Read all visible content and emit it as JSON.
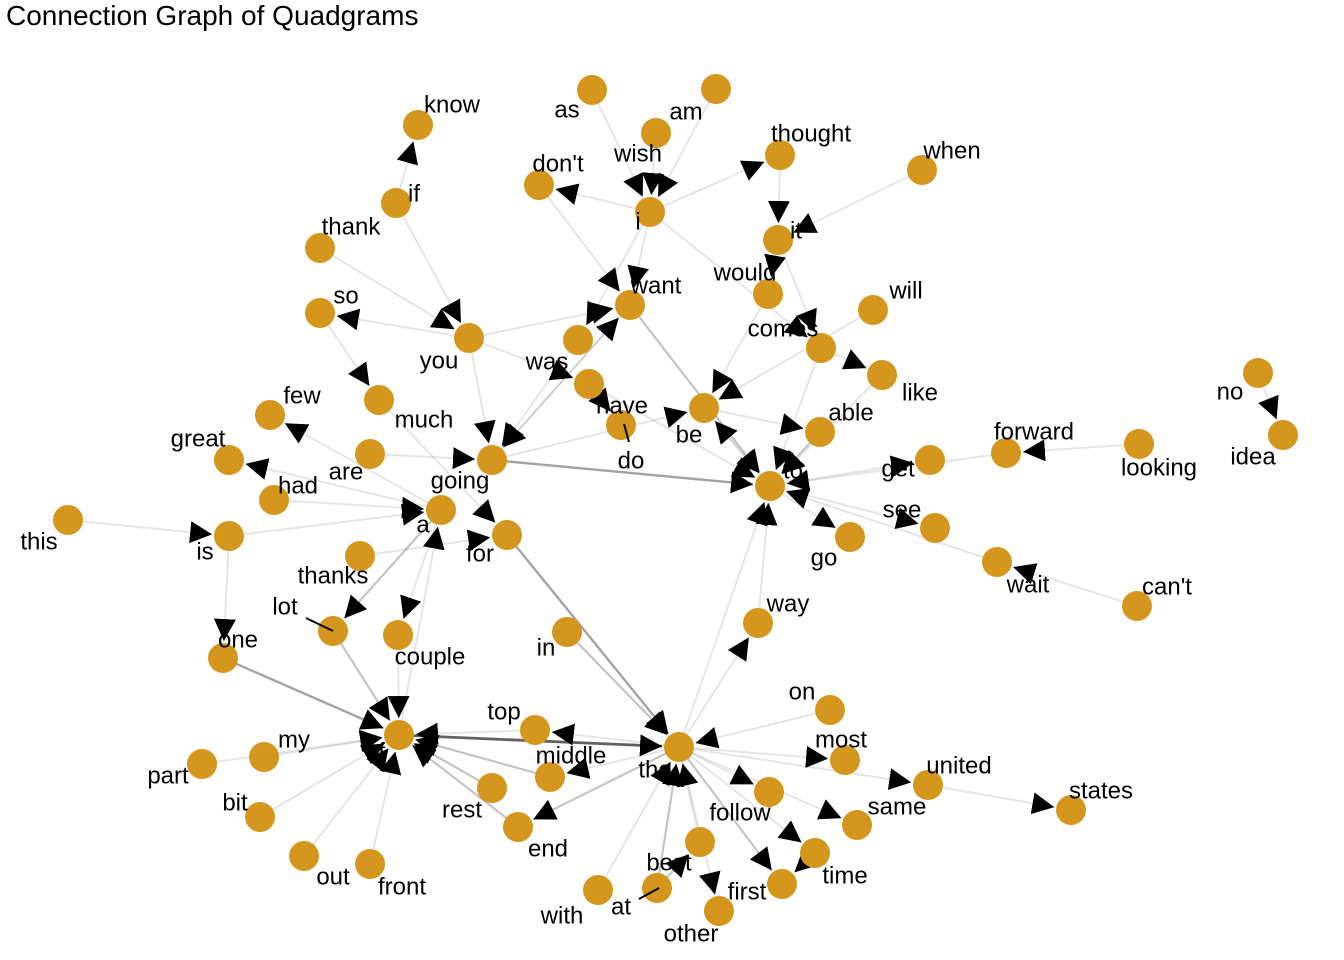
{
  "title": "Connection Graph of Quadgrams",
  "colors": {
    "node": "#D4961C",
    "edge": "#000000",
    "background": "#ffffff",
    "label": "#000000"
  },
  "nodes": [
    {
      "id": "know",
      "label": "know"
    },
    {
      "id": "as",
      "label": "as"
    },
    {
      "id": "am",
      "label": "am"
    },
    {
      "id": "wish",
      "label": "wish"
    },
    {
      "id": "thought",
      "label": "thought"
    },
    {
      "id": "don't",
      "label": "don't"
    },
    {
      "id": "when",
      "label": "when"
    },
    {
      "id": "if",
      "label": "if"
    },
    {
      "id": "i",
      "label": "i"
    },
    {
      "id": "thank",
      "label": "thank"
    },
    {
      "id": "it",
      "label": "it"
    },
    {
      "id": "would",
      "label": "would"
    },
    {
      "id": "want",
      "label": "want"
    },
    {
      "id": "will",
      "label": "will"
    },
    {
      "id": "so",
      "label": "so"
    },
    {
      "id": "you",
      "label": "you"
    },
    {
      "id": "was",
      "label": "was"
    },
    {
      "id": "comes",
      "label": "comes"
    },
    {
      "id": "like",
      "label": "like"
    },
    {
      "id": "have",
      "label": "have"
    },
    {
      "id": "much",
      "label": "much"
    },
    {
      "id": "few",
      "label": "few"
    },
    {
      "id": "be",
      "label": "be"
    },
    {
      "id": "able",
      "label": "able"
    },
    {
      "id": "no",
      "label": "no"
    },
    {
      "id": "idea",
      "label": "idea"
    },
    {
      "id": "forward",
      "label": "forward"
    },
    {
      "id": "looking",
      "label": "looking"
    },
    {
      "id": "great",
      "label": "great"
    },
    {
      "id": "are",
      "label": "are"
    },
    {
      "id": "do",
      "label": "do"
    },
    {
      "id": "going",
      "label": "going"
    },
    {
      "id": "get",
      "label": "get"
    },
    {
      "id": "to",
      "label": "to"
    },
    {
      "id": "had",
      "label": "had"
    },
    {
      "id": "a",
      "label": "a"
    },
    {
      "id": "see",
      "label": "see"
    },
    {
      "id": "this",
      "label": "this"
    },
    {
      "id": "is",
      "label": "is"
    },
    {
      "id": "for",
      "label": "for"
    },
    {
      "id": "go",
      "label": "go"
    },
    {
      "id": "thanks",
      "label": "thanks"
    },
    {
      "id": "wait",
      "label": "wait"
    },
    {
      "id": "can't",
      "label": "can't"
    },
    {
      "id": "lot",
      "label": "lot"
    },
    {
      "id": "one",
      "label": "one"
    },
    {
      "id": "couple",
      "label": "couple"
    },
    {
      "id": "in",
      "label": "in"
    },
    {
      "id": "way",
      "label": "way"
    },
    {
      "id": "on",
      "label": "on"
    },
    {
      "id": "top",
      "label": "top"
    },
    {
      "id": "my",
      "label": "my"
    },
    {
      "id": "most",
      "label": "most"
    },
    {
      "id": "of",
      "label": "of"
    },
    {
      "id": "middle",
      "label": "middle"
    },
    {
      "id": "the",
      "label": "the"
    },
    {
      "id": "united",
      "label": "united"
    },
    {
      "id": "states",
      "label": "states"
    },
    {
      "id": "part",
      "label": "part"
    },
    {
      "id": "rest",
      "label": "rest"
    },
    {
      "id": "follow",
      "label": "follow"
    },
    {
      "id": "same",
      "label": "same"
    },
    {
      "id": "bit",
      "label": "bit"
    },
    {
      "id": "end",
      "label": "end"
    },
    {
      "id": "best",
      "label": "best"
    },
    {
      "id": "time",
      "label": "time"
    },
    {
      "id": "out",
      "label": "out"
    },
    {
      "id": "front",
      "label": "front"
    },
    {
      "id": "first",
      "label": "first"
    },
    {
      "id": "with",
      "label": "with"
    },
    {
      "id": "at",
      "label": "at"
    },
    {
      "id": "other",
      "label": "other"
    }
  ],
  "edges": [
    {
      "from": "if",
      "to": "know",
      "weight": 1
    },
    {
      "from": "thank",
      "to": "you",
      "weight": 1
    },
    {
      "from": "if",
      "to": "you",
      "weight": 1
    },
    {
      "from": "you",
      "to": "so",
      "weight": 1
    },
    {
      "from": "so",
      "to": "much",
      "weight": 1
    },
    {
      "from": "you",
      "to": "want",
      "weight": 1
    },
    {
      "from": "you",
      "to": "going",
      "weight": 1
    },
    {
      "from": "you",
      "to": "have",
      "weight": 1
    },
    {
      "from": "as",
      "to": "i",
      "weight": 1
    },
    {
      "from": "am",
      "to": "i",
      "weight": 1
    },
    {
      "from": "wish",
      "to": "i",
      "weight": 1
    },
    {
      "from": "i",
      "to": "don't",
      "weight": 1
    },
    {
      "from": "i",
      "to": "thought",
      "weight": 1
    },
    {
      "from": "i",
      "to": "want",
      "weight": 1
    },
    {
      "from": "i",
      "to": "was",
      "weight": 1
    },
    {
      "from": "i",
      "to": "comes",
      "weight": 1
    },
    {
      "from": "don't",
      "to": "want",
      "weight": 1
    },
    {
      "from": "thought",
      "to": "it",
      "weight": 1
    },
    {
      "from": "when",
      "to": "it",
      "weight": 1
    },
    {
      "from": "it",
      "to": "would",
      "weight": 1
    },
    {
      "from": "it",
      "to": "comes",
      "weight": 1
    },
    {
      "from": "would",
      "to": "be",
      "weight": 1
    },
    {
      "from": "will",
      "to": "be",
      "weight": 1
    },
    {
      "from": "comes",
      "to": "to",
      "weight": 1
    },
    {
      "from": "comes",
      "to": "like",
      "weight": 1
    },
    {
      "from": "want",
      "to": "to",
      "weight": 2
    },
    {
      "from": "want",
      "to": "going",
      "weight": 1
    },
    {
      "from": "was",
      "to": "going",
      "weight": 1
    },
    {
      "from": "have",
      "to": "to",
      "weight": 1
    },
    {
      "from": "have",
      "to": "do",
      "weight": 2
    },
    {
      "from": "be",
      "to": "able",
      "weight": 1
    },
    {
      "from": "be",
      "to": "to",
      "weight": 1
    },
    {
      "from": "able",
      "to": "to",
      "weight": 2
    },
    {
      "from": "to",
      "to": "be",
      "weight": 1
    },
    {
      "from": "like",
      "to": "to",
      "weight": 1
    },
    {
      "from": "going",
      "to": "to",
      "weight": 3
    },
    {
      "from": "going",
      "to": "be",
      "weight": 1
    },
    {
      "from": "going",
      "to": "want",
      "weight": 1
    },
    {
      "from": "looking",
      "to": "forward",
      "weight": 1
    },
    {
      "from": "forward",
      "to": "to",
      "weight": 1
    },
    {
      "from": "no",
      "to": "idea",
      "weight": 1
    },
    {
      "from": "to",
      "to": "get",
      "weight": 1
    },
    {
      "from": "to",
      "to": "see",
      "weight": 1
    },
    {
      "from": "to",
      "to": "go",
      "weight": 1
    },
    {
      "from": "wait",
      "to": "to",
      "weight": 1
    },
    {
      "from": "can't",
      "to": "wait",
      "weight": 1
    },
    {
      "from": "way",
      "to": "to",
      "weight": 1
    },
    {
      "from": "the",
      "to": "to",
      "weight": 1
    },
    {
      "from": "a",
      "to": "few",
      "weight": 1
    },
    {
      "from": "a",
      "to": "great",
      "weight": 1
    },
    {
      "from": "a",
      "to": "lot",
      "weight": 2
    },
    {
      "from": "a",
      "to": "couple",
      "weight": 1
    },
    {
      "from": "are",
      "to": "going",
      "weight": 1
    },
    {
      "from": "much",
      "to": "for",
      "weight": 1
    },
    {
      "from": "had",
      "to": "a",
      "weight": 1
    },
    {
      "from": "is",
      "to": "a",
      "weight": 1
    },
    {
      "from": "this",
      "to": "is",
      "weight": 1
    },
    {
      "from": "is",
      "to": "one",
      "weight": 1
    },
    {
      "from": "thanks",
      "to": "for",
      "weight": 1
    },
    {
      "from": "for",
      "to": "the",
      "weight": 3
    },
    {
      "from": "in",
      "to": "the",
      "weight": 2
    },
    {
      "from": "lot",
      "to": "of",
      "weight": 2
    },
    {
      "from": "one",
      "to": "of",
      "weight": 3
    },
    {
      "from": "couple",
      "to": "of",
      "weight": 1
    },
    {
      "from": "of",
      "to": "the",
      "weight": 5
    },
    {
      "from": "of",
      "to": "a",
      "weight": 1
    },
    {
      "from": "my",
      "to": "of",
      "weight": 1
    },
    {
      "from": "part",
      "to": "of",
      "weight": 1
    },
    {
      "from": "bit",
      "to": "of",
      "weight": 1
    },
    {
      "from": "out",
      "to": "of",
      "weight": 1
    },
    {
      "from": "front",
      "to": "of",
      "weight": 1
    },
    {
      "from": "top",
      "to": "of",
      "weight": 1
    },
    {
      "from": "middle",
      "to": "of",
      "weight": 2
    },
    {
      "from": "rest",
      "to": "of",
      "weight": 2
    },
    {
      "from": "end",
      "to": "of",
      "weight": 2
    },
    {
      "from": "the",
      "to": "top",
      "weight": 1
    },
    {
      "from": "the",
      "to": "end",
      "weight": 2
    },
    {
      "from": "the",
      "to": "middle",
      "weight": 1
    },
    {
      "from": "the",
      "to": "united",
      "weight": 1
    },
    {
      "from": "the",
      "to": "same",
      "weight": 1
    },
    {
      "from": "the",
      "to": "first",
      "weight": 2
    },
    {
      "from": "the",
      "to": "time",
      "weight": 1
    },
    {
      "from": "the",
      "to": "most",
      "weight": 1
    },
    {
      "from": "the",
      "to": "follow",
      "weight": 1
    },
    {
      "from": "the",
      "to": "other",
      "weight": 1
    },
    {
      "from": "on",
      "to": "the",
      "weight": 1
    },
    {
      "from": "the",
      "to": "way",
      "weight": 1
    },
    {
      "from": "united",
      "to": "states",
      "weight": 1
    },
    {
      "from": "at",
      "to": "the",
      "weight": 2
    },
    {
      "from": "with",
      "to": "the",
      "weight": 1
    },
    {
      "from": "at",
      "to": "best",
      "weight": 2
    },
    {
      "from": "best",
      "to": "the",
      "weight": 1
    },
    {
      "from": "time",
      "to": "first",
      "weight": 1
    }
  ]
}
